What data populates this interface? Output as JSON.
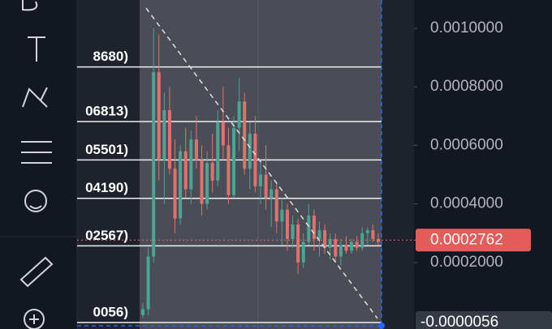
{
  "price_axis": {
    "ticks": [
      {
        "value": 0.001,
        "label": "0.0010000"
      },
      {
        "value": 0.0008,
        "label": "0.0008000"
      },
      {
        "value": 0.0006,
        "label": "0.0006000"
      },
      {
        "value": 0.0004,
        "label": "0.0004000"
      },
      {
        "value": 0.0002,
        "label": "0.0002000"
      }
    ]
  },
  "current_price": {
    "value": 0.0002762,
    "label": "0.0002762"
  },
  "fib_levels": [
    {
      "value": 0.000868,
      "label": "8680)"
    },
    {
      "value": 0.0006813,
      "label": "06813)"
    },
    {
      "value": 0.0005501,
      "label": "05501)"
    },
    {
      "value": 0.000419,
      "label": "04190)"
    },
    {
      "value": 0.0002567,
      "label": "02567)"
    },
    {
      "value": -5.6e-06,
      "label": "0056)"
    }
  ],
  "axis_marker": {
    "value": -5.6e-06,
    "label": "-0.0000056"
  },
  "candles": [
    {
      "o": 2e-05,
      "h": 6e-05,
      "l": 1e-05,
      "c": 4e-05
    },
    {
      "o": 4e-05,
      "h": 0.00025,
      "l": 2e-05,
      "c": 0.00022
    },
    {
      "o": 0.00022,
      "h": 0.001,
      "l": 0.0002,
      "c": 0.00085
    },
    {
      "o": 0.00085,
      "h": 0.00098,
      "l": 0.00048,
      "c": 0.00055
    },
    {
      "o": 0.00055,
      "h": 0.00078,
      "l": 0.0004,
      "c": 0.00072
    },
    {
      "o": 0.00072,
      "h": 0.0008,
      "l": 0.0005,
      "c": 0.00052
    },
    {
      "o": 0.00052,
      "h": 0.00062,
      "l": 0.0003,
      "c": 0.00035
    },
    {
      "o": 0.00035,
      "h": 0.0006,
      "l": 0.00033,
      "c": 0.00058
    },
    {
      "o": 0.00058,
      "h": 0.00066,
      "l": 0.00042,
      "c": 0.00045
    },
    {
      "o": 0.00045,
      "h": 0.00065,
      "l": 0.0004,
      "c": 0.00062
    },
    {
      "o": 0.00062,
      "h": 0.0007,
      "l": 0.00052,
      "c": 0.00055
    },
    {
      "o": 0.00055,
      "h": 0.0006,
      "l": 0.00036,
      "c": 0.0004
    },
    {
      "o": 0.0004,
      "h": 0.00058,
      "l": 0.00038,
      "c": 0.00054
    },
    {
      "o": 0.00054,
      "h": 0.00064,
      "l": 0.00044,
      "c": 0.00048
    },
    {
      "o": 0.00048,
      "h": 0.00072,
      "l": 0.00046,
      "c": 0.00068
    },
    {
      "o": 0.00068,
      "h": 0.0008,
      "l": 0.00055,
      "c": 0.0006
    },
    {
      "o": 0.0006,
      "h": 0.00066,
      "l": 0.0004,
      "c": 0.00043
    },
    {
      "o": 0.00043,
      "h": 0.0007,
      "l": 0.00042,
      "c": 0.00066
    },
    {
      "o": 0.00066,
      "h": 0.00083,
      "l": 0.00058,
      "c": 0.00075
    },
    {
      "o": 0.00075,
      "h": 0.00078,
      "l": 0.0005,
      "c": 0.00052
    },
    {
      "o": 0.00052,
      "h": 0.00068,
      "l": 0.00045,
      "c": 0.00064
    },
    {
      "o": 0.00064,
      "h": 0.0007,
      "l": 0.00044,
      "c": 0.00046
    },
    {
      "o": 0.00046,
      "h": 0.00055,
      "l": 0.0004,
      "c": 0.0005
    },
    {
      "o": 0.0005,
      "h": 0.0006,
      "l": 0.00038,
      "c": 0.00042
    },
    {
      "o": 0.00042,
      "h": 0.00048,
      "l": 0.00032,
      "c": 0.00045
    },
    {
      "o": 0.00045,
      "h": 0.00047,
      "l": 0.0003,
      "c": 0.00034
    },
    {
      "o": 0.00034,
      "h": 0.00042,
      "l": 0.00026,
      "c": 0.00038
    },
    {
      "o": 0.00038,
      "h": 0.0004,
      "l": 0.00024,
      "c": 0.00028
    },
    {
      "o": 0.00028,
      "h": 0.00036,
      "l": 0.00025,
      "c": 0.00033
    },
    {
      "o": 0.00033,
      "h": 0.00035,
      "l": 0.00016,
      "c": 0.0002
    },
    {
      "o": 0.0002,
      "h": 0.0003,
      "l": 0.00018,
      "c": 0.00027
    },
    {
      "o": 0.00027,
      "h": 0.0004,
      "l": 0.00026,
      "c": 0.00036
    },
    {
      "o": 0.00036,
      "h": 0.00038,
      "l": 0.00024,
      "c": 0.00028
    },
    {
      "o": 0.00028,
      "h": 0.00034,
      "l": 0.00022,
      "c": 0.00031
    },
    {
      "o": 0.00031,
      "h": 0.00033,
      "l": 0.00023,
      "c": 0.00025
    },
    {
      "o": 0.00025,
      "h": 0.0003,
      "l": 0.00021,
      "c": 0.00028
    },
    {
      "o": 0.00028,
      "h": 0.0003,
      "l": 0.0002,
      "c": 0.00022
    },
    {
      "o": 0.00022,
      "h": 0.00028,
      "l": 0.00019,
      "c": 0.00026
    },
    {
      "o": 0.00026,
      "h": 0.00029,
      "l": 0.00023,
      "c": 0.00024
    },
    {
      "o": 0.00024,
      "h": 0.00028,
      "l": 0.00023,
      "c": 0.00027
    },
    {
      "o": 0.00027,
      "h": 0.00029,
      "l": 0.00024,
      "c": 0.00025
    },
    {
      "o": 0.00025,
      "h": 0.00032,
      "l": 0.00024,
      "c": 0.0003
    },
    {
      "o": 0.0003,
      "h": 0.00032,
      "l": 0.00026,
      "c": 0.00031
    },
    {
      "o": 0.00031,
      "h": 0.00033,
      "l": 0.00027,
      "c": 0.00028
    },
    {
      "o": 0.00028,
      "h": 0.0003,
      "l": 0.00026,
      "c": 0.00027
    }
  ]
}
